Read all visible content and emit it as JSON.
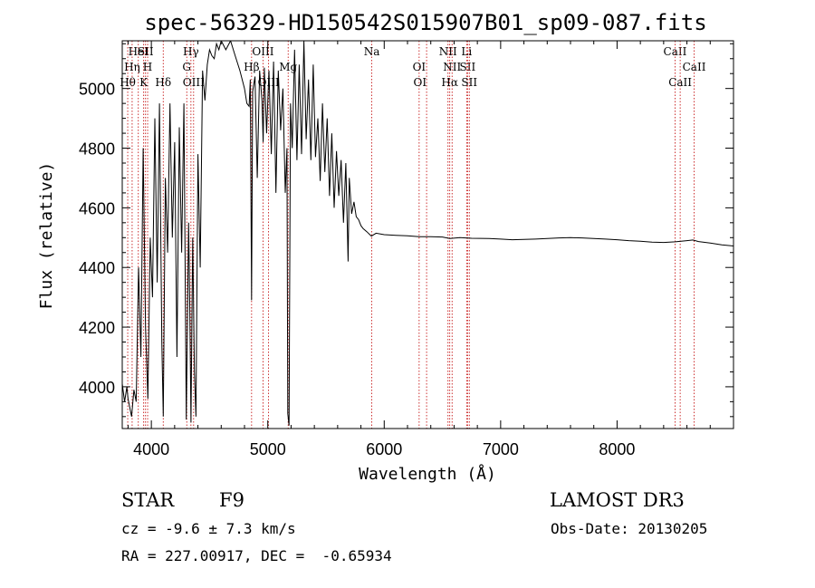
{
  "chart_data": {
    "type": "line",
    "title": "spec-56329-HD150542S015907B01_sp09-087.fits",
    "xlabel": "Wavelength (Å)",
    "ylabel": "Flux (relative)",
    "xlim": [
      3750,
      9000
    ],
    "ylim": [
      3860,
      5160
    ],
    "xticks": [
      4000,
      5000,
      6000,
      7000,
      8000
    ],
    "yticks": [
      4000,
      4200,
      4400,
      4600,
      4800,
      5000
    ],
    "x_minor_step": 200,
    "y_minor_step": 50,
    "grid": false,
    "line_color": "#000000",
    "marker_color": "#c00000",
    "series": [
      {
        "name": "spectrum",
        "points": [
          [
            3750,
            4010
          ],
          [
            3770,
            3950
          ],
          [
            3790,
            4000
          ],
          [
            3800,
            3960
          ],
          [
            3830,
            3900
          ],
          [
            3850,
            3990
          ],
          [
            3870,
            3950
          ],
          [
            3890,
            4400
          ],
          [
            3910,
            4100
          ],
          [
            3930,
            4800
          ],
          [
            3950,
            4200
          ],
          [
            3970,
            3960
          ],
          [
            3990,
            4500
          ],
          [
            4010,
            4300
          ],
          [
            4030,
            4900
          ],
          [
            4050,
            4350
          ],
          [
            4070,
            4950
          ],
          [
            4090,
            4150
          ],
          [
            4102,
            3900
          ],
          [
            4120,
            4700
          ],
          [
            4140,
            4450
          ],
          [
            4160,
            4950
          ],
          [
            4180,
            4500
          ],
          [
            4200,
            4820
          ],
          [
            4220,
            4100
          ],
          [
            4240,
            4870
          ],
          [
            4260,
            4450
          ],
          [
            4280,
            4950
          ],
          [
            4300,
            3890
          ],
          [
            4320,
            4550
          ],
          [
            4330,
            4260
          ],
          [
            4340,
            3880
          ],
          [
            4355,
            4500
          ],
          [
            4370,
            4050
          ],
          [
            4383,
            3900
          ],
          [
            4400,
            4780
          ],
          [
            4420,
            4400
          ],
          [
            4440,
            5060
          ],
          [
            4460,
            4960
          ],
          [
            4480,
            5080
          ],
          [
            4500,
            5130
          ],
          [
            4520,
            5110
          ],
          [
            4540,
            5100
          ],
          [
            4560,
            5150
          ],
          [
            4580,
            5130
          ],
          [
            4600,
            5160
          ],
          [
            4640,
            5130
          ],
          [
            4680,
            5160
          ],
          [
            4720,
            5110
          ],
          [
            4760,
            5060
          ],
          [
            4800,
            5000
          ],
          [
            4820,
            4950
          ],
          [
            4840,
            4940
          ],
          [
            4850,
            5030
          ],
          [
            4861,
            4290
          ],
          [
            4870,
            4990
          ],
          [
            4890,
            5040
          ],
          [
            4910,
            4700
          ],
          [
            4930,
            5060
          ],
          [
            4950,
            4960
          ],
          [
            4960,
            4820
          ],
          [
            4970,
            5070
          ],
          [
            4990,
            4850
          ],
          [
            5010,
            5060
          ],
          [
            5030,
            4780
          ],
          [
            5050,
            5090
          ],
          [
            5070,
            4650
          ],
          [
            5090,
            5060
          ],
          [
            5110,
            4860
          ],
          [
            5130,
            5000
          ],
          [
            5150,
            4650
          ],
          [
            5165,
            4800
          ],
          [
            5172,
            3910
          ],
          [
            5183,
            3870
          ],
          [
            5195,
            4950
          ],
          [
            5210,
            4800
          ],
          [
            5230,
            5130
          ],
          [
            5250,
            4760
          ],
          [
            5270,
            5080
          ],
          [
            5290,
            4780
          ],
          [
            5310,
            5160
          ],
          [
            5330,
            4830
          ],
          [
            5350,
            5030
          ],
          [
            5370,
            4760
          ],
          [
            5390,
            5080
          ],
          [
            5410,
            4770
          ],
          [
            5430,
            4900
          ],
          [
            5450,
            4690
          ],
          [
            5470,
            4950
          ],
          [
            5490,
            4720
          ],
          [
            5510,
            4900
          ],
          [
            5530,
            4640
          ],
          [
            5550,
            4850
          ],
          [
            5570,
            4600
          ],
          [
            5590,
            4790
          ],
          [
            5610,
            4640
          ],
          [
            5630,
            4760
          ],
          [
            5650,
            4550
          ],
          [
            5670,
            4750
          ],
          [
            5690,
            4420
          ],
          [
            5700,
            4700
          ],
          [
            5720,
            4580
          ],
          [
            5740,
            4620
          ],
          [
            5760,
            4570
          ],
          [
            5780,
            4560
          ],
          [
            5800,
            4540
          ],
          [
            5820,
            4530
          ],
          [
            5850,
            4520
          ],
          [
            5890,
            4505
          ],
          [
            5930,
            4515
          ],
          [
            6000,
            4510
          ],
          [
            6100,
            4508
          ],
          [
            6200,
            4506
          ],
          [
            6300,
            4503
          ],
          [
            6400,
            4503
          ],
          [
            6500,
            4502
          ],
          [
            6563,
            4497
          ],
          [
            6650,
            4500
          ],
          [
            6750,
            4498
          ],
          [
            6900,
            4497
          ],
          [
            7000,
            4495
          ],
          [
            7100,
            4493
          ],
          [
            7200,
            4494
          ],
          [
            7300,
            4495
          ],
          [
            7400,
            4497
          ],
          [
            7500,
            4499
          ],
          [
            7600,
            4500
          ],
          [
            7700,
            4499
          ],
          [
            7800,
            4497
          ],
          [
            7900,
            4495
          ],
          [
            8000,
            4493
          ],
          [
            8100,
            4490
          ],
          [
            8200,
            4488
          ],
          [
            8300,
            4485
          ],
          [
            8400,
            4484
          ],
          [
            8500,
            4486
          ],
          [
            8600,
            4490
          ],
          [
            8650,
            4492
          ],
          [
            8700,
            4487
          ],
          [
            8800,
            4482
          ],
          [
            8900,
            4476
          ],
          [
            9000,
            4472
          ]
        ]
      }
    ],
    "line_markers": [
      {
        "label": "HeI",
        "x": 3888,
        "row": 1,
        "anchor": "middle"
      },
      {
        "label": "SII",
        "x": 3950,
        "row": 1,
        "anchor": "middle"
      },
      {
        "label": "Hη",
        "x": 3835,
        "row": 2,
        "anchor": "middle"
      },
      {
        "label": "H",
        "x": 3968,
        "row": 2,
        "anchor": "middle"
      },
      {
        "label": "Hθ",
        "x": 3797,
        "row": 3,
        "anchor": "middle"
      },
      {
        "label": "K",
        "x": 3934,
        "row": 3,
        "anchor": "middle"
      },
      {
        "label": "Hδ",
        "x": 4102,
        "row": 3,
        "anchor": "middle"
      },
      {
        "label": "Hγ",
        "x": 4340,
        "row": 1,
        "anchor": "middle"
      },
      {
        "label": "G",
        "x": 4304,
        "row": 2,
        "anchor": "middle"
      },
      {
        "label": "OIII",
        "x": 4363,
        "row": 3,
        "anchor": "middle"
      },
      {
        "label": "OIII",
        "x": 4959,
        "row": 1,
        "anchor": "middle"
      },
      {
        "label": "Hβ",
        "x": 4861,
        "row": 2,
        "anchor": "middle"
      },
      {
        "label": "Mg",
        "x": 5175,
        "row": 2,
        "anchor": "middle"
      },
      {
        "label": "OIII",
        "x": 5007,
        "row": 3,
        "anchor": "middle"
      },
      {
        "label": "Na",
        "x": 5893,
        "row": 1,
        "anchor": "middle"
      },
      {
        "label": "OI",
        "x": 6300,
        "row": 2,
        "anchor": "middle"
      },
      {
        "label": "OI",
        "x": 6364,
        "row": 3,
        "anchor": "end"
      },
      {
        "label": "NII",
        "x": 6548,
        "row": 1,
        "anchor": "middle"
      },
      {
        "label": "Li",
        "x": 6708,
        "row": 1,
        "anchor": "middle"
      },
      {
        "label": "NII",
        "x": 6583,
        "row": 2,
        "anchor": "middle"
      },
      {
        "label": "SII",
        "x": 6716,
        "row": 2,
        "anchor": "middle"
      },
      {
        "label": "Hα",
        "x": 6563,
        "row": 3,
        "anchor": "middle"
      },
      {
        "label": "SII",
        "x": 6731,
        "row": 3,
        "anchor": "middle"
      },
      {
        "label": "CaII",
        "x": 8498,
        "row": 1,
        "anchor": "middle"
      },
      {
        "label": "CaII",
        "x": 8662,
        "row": 2,
        "anchor": "middle"
      },
      {
        "label": "CaII",
        "x": 8542,
        "row": 3,
        "anchor": "middle"
      }
    ]
  },
  "info": {
    "object_type": "STAR",
    "spectral_class": "F9",
    "survey": "LAMOST DR3",
    "redshift": "cz = -9.6 ± 7.3 km/s",
    "obs_date": "Obs-Date: 20130205",
    "coordinates": "RA = 227.00917, DEC =  -0.65934"
  }
}
